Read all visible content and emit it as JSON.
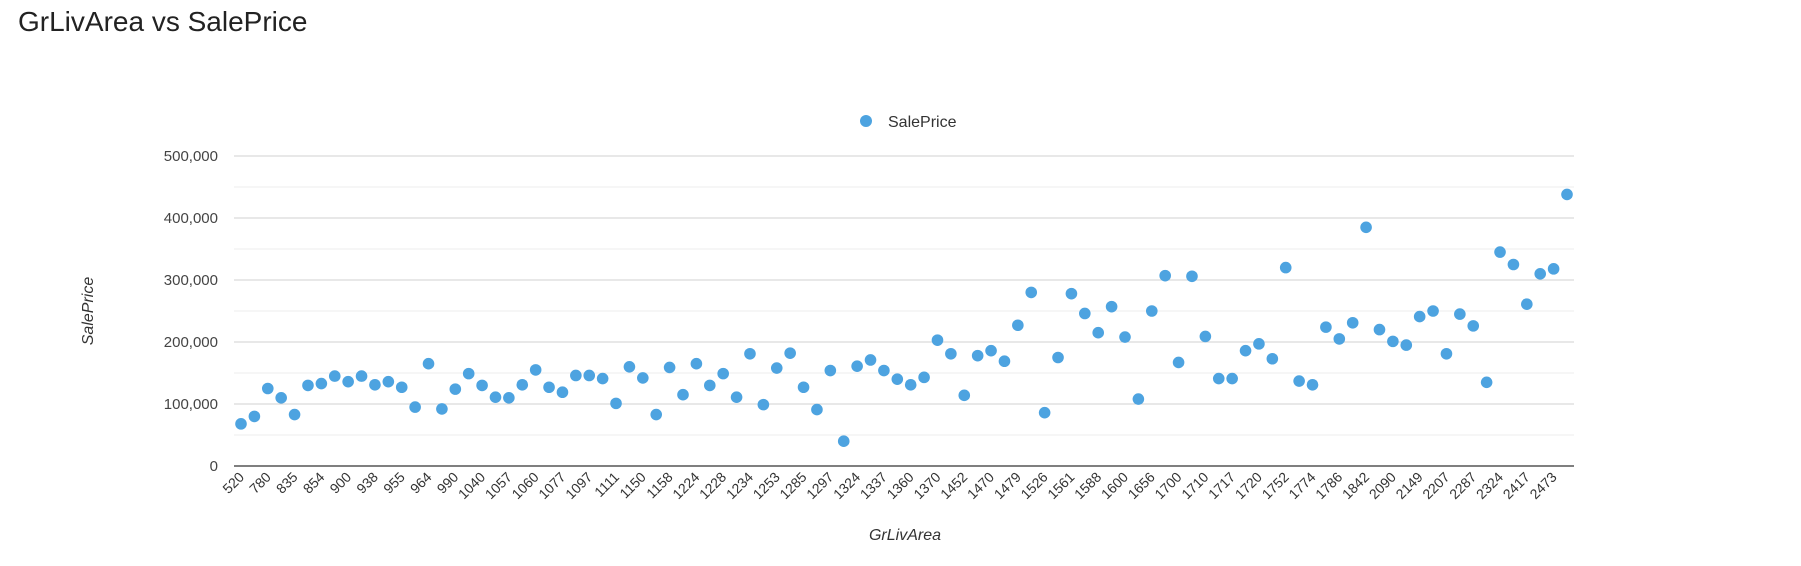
{
  "page": {
    "title": "GrLivArea vs SalePrice"
  },
  "colors": {
    "series": "#4da3e0",
    "grid_major": "#d0d0d0",
    "grid_minor": "#eeeeee",
    "axis": "#333333",
    "text": "#333333"
  },
  "chart_data": {
    "type": "scatter",
    "xlabel": "GrLivArea",
    "ylabel": "SalePrice",
    "ylim": [
      0,
      500000
    ],
    "yticks": [
      "0",
      "100,000",
      "200,000",
      "300,000",
      "400,000",
      "500,000"
    ],
    "legend": {
      "position": "top-center",
      "entries": [
        "SalePrice"
      ]
    },
    "grid": true,
    "x_tick_labels": [
      "520",
      "780",
      "835",
      "854",
      "900",
      "938",
      "955",
      "964",
      "990",
      "1040",
      "1057",
      "1060",
      "1077",
      "1097",
      "1111",
      "1150",
      "1158",
      "1224",
      "1228",
      "1234",
      "1253",
      "1285",
      "1297",
      "1324",
      "1337",
      "1360",
      "1370",
      "1452",
      "1470",
      "1479",
      "1526",
      "1561",
      "1588",
      "1600",
      "1656",
      "1700",
      "1710",
      "1717",
      "1720",
      "1752",
      "1774",
      "1786",
      "1842",
      "2090",
      "2149",
      "2207",
      "2287",
      "2324",
      "2417",
      "2473"
    ],
    "series": [
      {
        "name": "SalePrice",
        "values": [
          68000,
          80000,
          125000,
          110000,
          83000,
          130000,
          133000,
          145000,
          136000,
          145000,
          131000,
          136000,
          127000,
          95000,
          165000,
          92000,
          124000,
          149000,
          130000,
          111000,
          110000,
          131000,
          155000,
          127000,
          119000,
          146000,
          146000,
          141000,
          101000,
          160000,
          142000,
          83000,
          159000,
          115000,
          165000,
          130000,
          149000,
          111000,
          181000,
          99000,
          158000,
          182000,
          127000,
          91000,
          154000,
          40000,
          161000,
          171000,
          154000,
          140000,
          131000,
          143000,
          203000,
          181000,
          114000,
          178000,
          186000,
          169000,
          227000,
          280000,
          86000,
          175000,
          278000,
          246000,
          215000,
          257000,
          208000,
          108000,
          250000,
          307000,
          167000,
          306000,
          209000,
          141000,
          141000,
          186000,
          197000,
          173000,
          320000,
          137000,
          131000,
          224000,
          205000,
          231000,
          385000,
          220000,
          201000,
          195000,
          241000,
          250000,
          181000,
          245000,
          226000,
          135000,
          345000,
          325000,
          261000,
          310000,
          318000,
          438000
        ]
      }
    ]
  }
}
